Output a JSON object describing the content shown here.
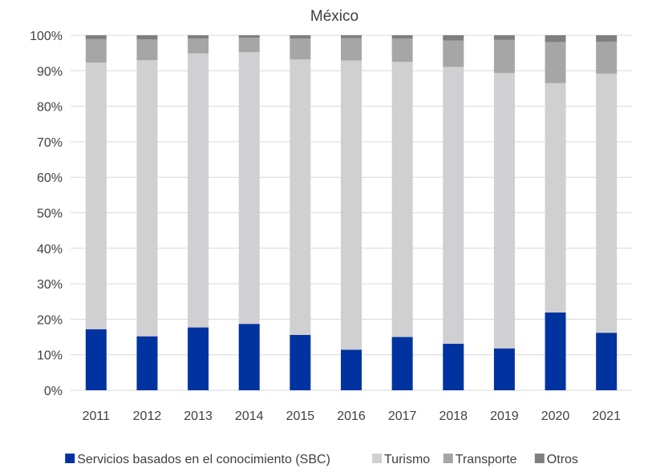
{
  "chart_data": {
    "type": "bar",
    "stacked": true,
    "title": "México",
    "categories": [
      "2011",
      "2012",
      "2013",
      "2014",
      "2015",
      "2016",
      "2017",
      "2018",
      "2019",
      "2020",
      "2021"
    ],
    "ylim": [
      0,
      100
    ],
    "yticks": [
      "0%",
      "10%",
      "20%",
      "30%",
      "40%",
      "50%",
      "60%",
      "70%",
      "80%",
      "90%",
      "100%"
    ],
    "grid": true,
    "legend_position": "bottom",
    "series": [
      {
        "name": "Servicios basados en el conocimiento (SBC)",
        "color": "#0033a0",
        "values": [
          17.2,
          15.2,
          17.7,
          18.7,
          15.6,
          11.4,
          15.0,
          13.1,
          11.8,
          21.9,
          16.2
        ]
      },
      {
        "name": "Turismo",
        "color": "#d0cfd1",
        "values": [
          75.1,
          77.8,
          77.2,
          76.5,
          77.6,
          81.5,
          77.5,
          78.0,
          77.6,
          64.6,
          73.0
        ]
      },
      {
        "name": "Transporte",
        "color": "#a6a6a6",
        "values": [
          6.6,
          5.8,
          4.2,
          4.1,
          5.9,
          6.3,
          6.6,
          7.4,
          9.3,
          11.6,
          9.0
        ]
      },
      {
        "name": "Otros",
        "color": "#7f7f7f",
        "values": [
          1.1,
          1.2,
          0.9,
          0.7,
          0.9,
          0.8,
          0.9,
          1.5,
          1.3,
          1.9,
          1.8
        ]
      }
    ]
  }
}
